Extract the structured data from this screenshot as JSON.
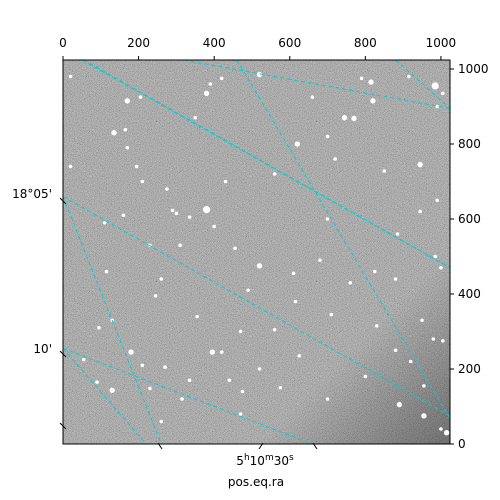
{
  "chart_data": {
    "type": "image",
    "title": "",
    "colormap": "gray",
    "pixel_axes": {
      "x_top": {
        "range": [
          0,
          1024
        ],
        "ticks": [
          0,
          200,
          400,
          600,
          800,
          1000
        ]
      },
      "y_right": {
        "range": [
          0,
          1024
        ],
        "ticks": [
          0,
          200,
          400,
          600,
          800,
          1000
        ]
      }
    },
    "world_axes": {
      "ra": {
        "label": "pos.eq.ra",
        "tick_labels": [
          {
            "prefix": "5",
            "u1": "h",
            "mid": "10",
            "u2": "m",
            "sec": "30",
            "u3": "s",
            "px": 600
          }
        ]
      },
      "dec": {
        "label": "",
        "tick_labels": [
          {
            "text": "18°05'",
            "py": 660
          },
          {
            "text": "10'",
            "py": 255
          }
        ]
      }
    },
    "grid": {
      "visible": true,
      "color": "#00d0d0",
      "style": "dashed",
      "lines_forward": [
        {
          "x0": 0,
          "y0": 660,
          "x1": 260,
          "y1": 0
        },
        {
          "x0": 0,
          "y0": 255,
          "x1": 660,
          "y1": 0
        },
        {
          "x0": 55,
          "y0": 1024,
          "x1": 1024,
          "y1": 470
        },
        {
          "x0": 460,
          "y0": 1024,
          "x1": 1024,
          "y1": 68
        },
        {
          "x0": 880,
          "y0": 1024,
          "x1": 1024,
          "y1": 895
        }
      ],
      "lines_backward": [
        {
          "x0": 0,
          "y0": 660,
          "x1": 1024,
          "y1": 75
        },
        {
          "x0": 0,
          "y0": 255,
          "x1": 220,
          "y1": 0
        },
        {
          "x0": 50,
          "y0": 1024,
          "x1": 1024,
          "y1": 470
        },
        {
          "x0": 320,
          "y0": 1024,
          "x1": 1024,
          "y1": 895
        }
      ]
    },
    "stars": [
      [
        20,
        980,
        2
      ],
      [
        170,
        915,
        3
      ],
      [
        205,
        925,
        2
      ],
      [
        380,
        935,
        3
      ],
      [
        390,
        960,
        2
      ],
      [
        420,
        975,
        2
      ],
      [
        520,
        985,
        3
      ],
      [
        790,
        975,
        2
      ],
      [
        815,
        965,
        3
      ],
      [
        745,
        870,
        3
      ],
      [
        770,
        868,
        3
      ],
      [
        820,
        915,
        3
      ],
      [
        660,
        925,
        2
      ],
      [
        985,
        955,
        4
      ],
      [
        990,
        900,
        2
      ],
      [
        1005,
        935,
        2
      ],
      [
        915,
        980,
        2
      ],
      [
        135,
        830,
        3
      ],
      [
        165,
        838,
        2
      ],
      [
        350,
        870,
        2
      ],
      [
        620,
        800,
        3
      ],
      [
        700,
        820,
        2
      ],
      [
        720,
        760,
        2
      ],
      [
        945,
        745,
        3
      ],
      [
        850,
        728,
        2
      ],
      [
        275,
        680,
        2
      ],
      [
        290,
        623,
        2
      ],
      [
        380,
        625,
        4
      ],
      [
        335,
        605,
        2
      ],
      [
        300,
        615,
        2
      ],
      [
        400,
        580,
        2
      ],
      [
        455,
        522,
        2
      ],
      [
        700,
        600,
        2
      ],
      [
        520,
        475,
        3
      ],
      [
        610,
        455,
        2
      ],
      [
        760,
        430,
        2
      ],
      [
        825,
        460,
        2
      ],
      [
        880,
        440,
        2
      ],
      [
        1000,
        470,
        2
      ],
      [
        985,
        500,
        2
      ],
      [
        115,
        460,
        2
      ],
      [
        130,
        330,
        2
      ],
      [
        245,
        395,
        2
      ],
      [
        355,
        340,
        2
      ],
      [
        470,
        300,
        2
      ],
      [
        560,
        305,
        2
      ],
      [
        710,
        345,
        2
      ],
      [
        830,
        315,
        2
      ],
      [
        950,
        330,
        2
      ],
      [
        1005,
        275,
        2
      ],
      [
        180,
        245,
        3
      ],
      [
        270,
        205,
        2
      ],
      [
        395,
        245,
        3
      ],
      [
        420,
        245,
        2
      ],
      [
        625,
        235,
        2
      ],
      [
        880,
        250,
        2
      ],
      [
        920,
        220,
        2
      ],
      [
        980,
        280,
        2
      ],
      [
        55,
        225,
        2
      ],
      [
        90,
        165,
        2
      ],
      [
        130,
        143,
        3
      ],
      [
        210,
        210,
        2
      ],
      [
        230,
        148,
        2
      ],
      [
        520,
        200,
        2
      ],
      [
        575,
        150,
        2
      ],
      [
        700,
        120,
        2
      ],
      [
        890,
        105,
        3
      ],
      [
        955,
        75,
        3
      ],
      [
        1000,
        40,
        2
      ],
      [
        1015,
        30,
        3
      ],
      [
        315,
        120,
        2
      ],
      [
        335,
        170,
        2
      ],
      [
        475,
        140,
        2
      ],
      [
        95,
        310,
        2
      ],
      [
        260,
        440,
        2
      ],
      [
        615,
        380,
        2
      ],
      [
        680,
        490,
        2
      ],
      [
        170,
        790,
        2
      ],
      [
        195,
        740,
        2
      ],
      [
        210,
        700,
        2
      ],
      [
        430,
        700,
        2
      ],
      [
        560,
        720,
        2
      ],
      [
        310,
        530,
        2
      ],
      [
        885,
        560,
        2
      ],
      [
        945,
        620,
        2
      ],
      [
        990,
        650,
        2
      ],
      [
        20,
        740,
        2
      ],
      [
        110,
        590,
        2
      ],
      [
        160,
        610,
        2
      ],
      [
        230,
        530,
        2
      ],
      [
        490,
        410,
        2
      ],
      [
        955,
        155,
        2
      ],
      [
        260,
        60,
        2
      ],
      [
        470,
        80,
        2
      ],
      [
        440,
        170,
        2
      ],
      [
        800,
        180,
        2
      ]
    ]
  }
}
